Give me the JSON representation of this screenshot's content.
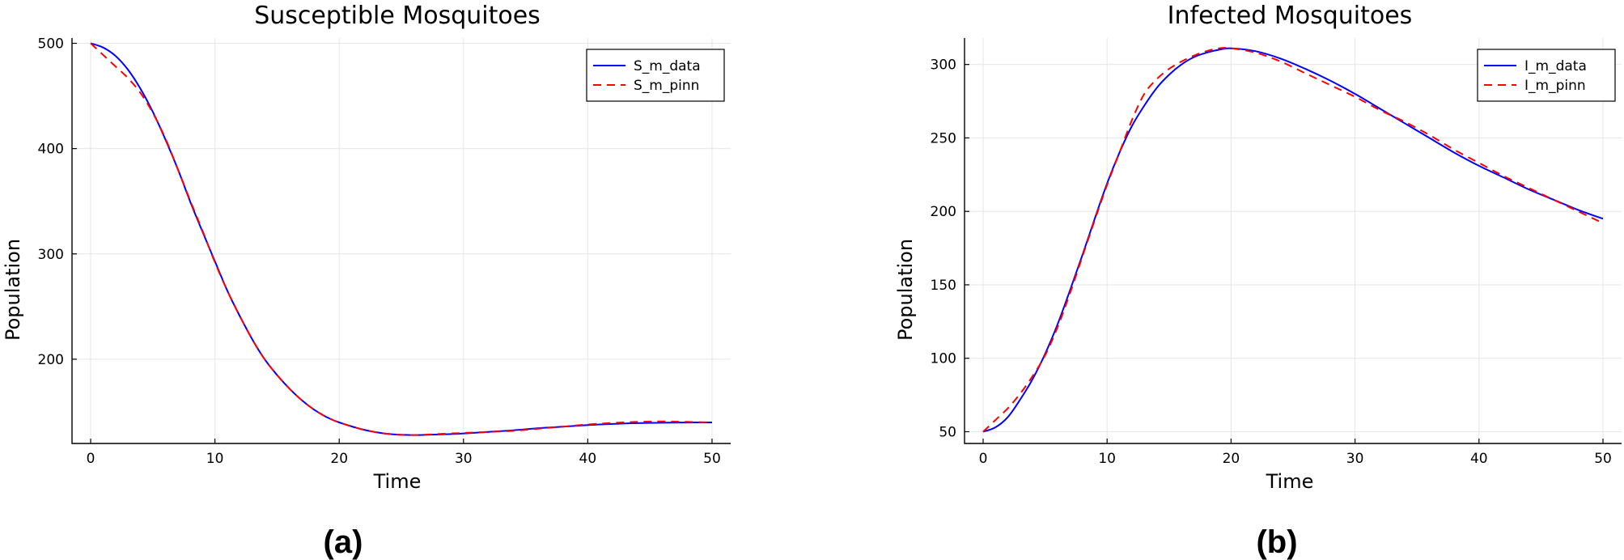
{
  "chart_data": [
    {
      "type": "line",
      "panel_label": "(a)",
      "title": "Susceptible Mosquitoes",
      "xlabel": "Time",
      "ylabel": "Population",
      "xlim": [
        -1.5,
        51.5
      ],
      "ylim": [
        120,
        505
      ],
      "xticks": [
        0,
        10,
        20,
        30,
        40,
        50
      ],
      "yticks": [
        200,
        300,
        400,
        500
      ],
      "grid": true,
      "legend_position": "top-right",
      "x": [
        0,
        1,
        2,
        3,
        4,
        5,
        6,
        7,
        8,
        9,
        10,
        11,
        12,
        13,
        14,
        15,
        16,
        17,
        18,
        19,
        20,
        22,
        24,
        26,
        28,
        30,
        32,
        34,
        36,
        38,
        40,
        42,
        44,
        46,
        48,
        50
      ],
      "series": [
        {
          "name": "S_m_data",
          "color": "#0000ff",
          "dash": "solid",
          "values": [
            500,
            496,
            488,
            475,
            457,
            435,
            409,
            381,
            350,
            321,
            293,
            265,
            241,
            219,
            200,
            185,
            172,
            161,
            152,
            145,
            140,
            133,
            129,
            128,
            128.5,
            129.5,
            131,
            132.5,
            134.5,
            136,
            137.5,
            138.5,
            139.3,
            139.7,
            139.9,
            140
          ]
        },
        {
          "name": "S_m_pinn",
          "color": "#ff0000",
          "dash": "10,7",
          "values": [
            500,
            489,
            478,
            467,
            453,
            434,
            410,
            381,
            351,
            322,
            292,
            265,
            241,
            219,
            200,
            185,
            172,
            161,
            152,
            145,
            140,
            133,
            129,
            128,
            129,
            130,
            131,
            132,
            134,
            136,
            138,
            139.5,
            140.5,
            141,
            140.5,
            140
          ]
        }
      ]
    },
    {
      "type": "line",
      "panel_label": "(b)",
      "title": "Infected Mosquitoes",
      "xlabel": "Time",
      "ylabel": "Population",
      "xlim": [
        -1.5,
        51.5
      ],
      "ylim": [
        42,
        318
      ],
      "xticks": [
        0,
        10,
        20,
        30,
        40,
        50
      ],
      "yticks": [
        50,
        100,
        150,
        200,
        250,
        300
      ],
      "grid": true,
      "legend_position": "top-right",
      "x": [
        0,
        1,
        2,
        3,
        4,
        5,
        6,
        7,
        8,
        9,
        10,
        11,
        12,
        13,
        14,
        15,
        16,
        17,
        18,
        19,
        20,
        22,
        24,
        26,
        28,
        30,
        32,
        34,
        36,
        38,
        40,
        42,
        44,
        46,
        48,
        50
      ],
      "series": [
        {
          "name": "I_m_data",
          "color": "#0000ff",
          "dash": "solid",
          "values": [
            50,
            53,
            60,
            72,
            86,
            103,
            123,
            146,
            170,
            195,
            219,
            240,
            258,
            272,
            284,
            293,
            300,
            305,
            308,
            310,
            311,
            309,
            304,
            297,
            289,
            280,
            270,
            260,
            250,
            240,
            231,
            223,
            215,
            208,
            201,
            195
          ]
        },
        {
          "name": "I_m_pinn",
          "color": "#ff0000",
          "dash": "10,7",
          "values": [
            50,
            58,
            66,
            76,
            88,
            102,
            121,
            144,
            169,
            194,
            218,
            240,
            262,
            280,
            290,
            297,
            302,
            306,
            309,
            311,
            311,
            308,
            302,
            294,
            286,
            278,
            269,
            261,
            252,
            242,
            233,
            224,
            216,
            208,
            200,
            192
          ]
        }
      ]
    }
  ]
}
